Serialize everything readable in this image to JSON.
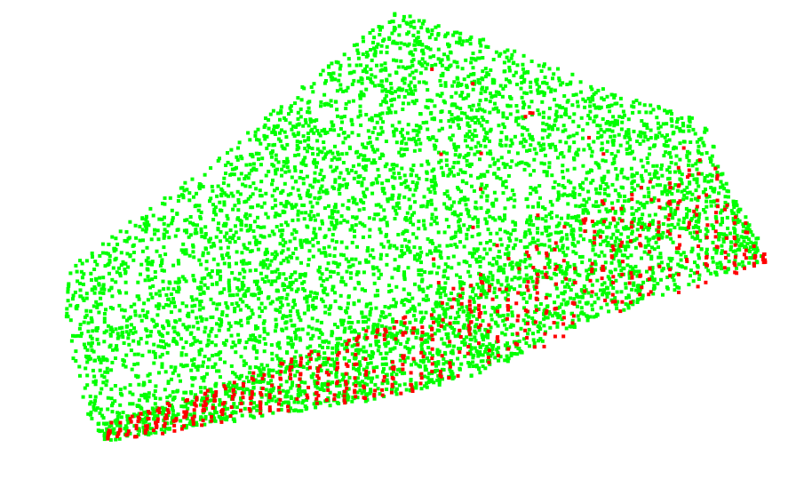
{
  "scene": {
    "type": "point-cloud",
    "background_color": "#ffffff",
    "point_classes": [
      {
        "class": "primary",
        "color": "#00ff00",
        "relative_density": 0.88
      },
      {
        "class": "secondary",
        "color": "#ff0000",
        "relative_density": 0.12
      }
    ],
    "visible_shape": "faceted block seen at an oblique angle, with lines of red points along the lower-right face"
  }
}
